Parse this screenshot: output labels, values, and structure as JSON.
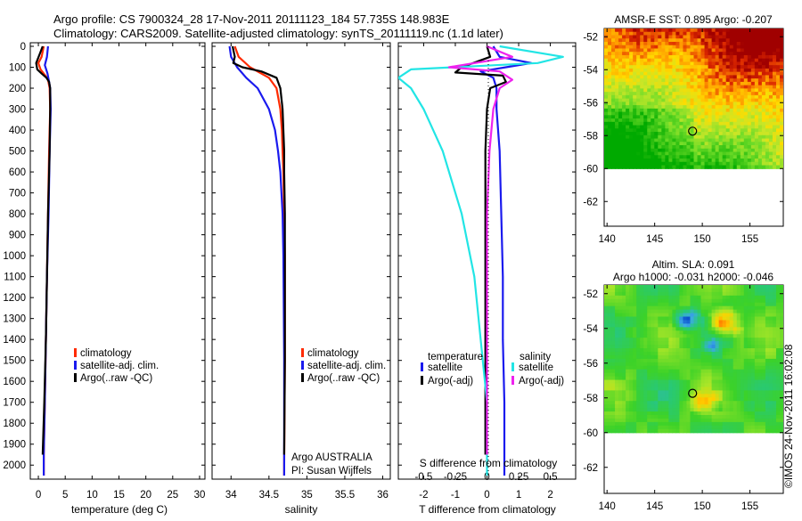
{
  "header": {
    "line1": "Argo profile: CS 7900324_28 17-Nov-2011 20111123_184 57.735S 148.983E",
    "line2": "Climatology: CARS2009. Satellite-adjusted climatology: synTS_20111119.nc (1.1d later)"
  },
  "colors": {
    "climatology": "#ff2a00",
    "satellite": "#1a1aee",
    "argo": "#000000",
    "sal_satellite": "#22e5e5",
    "sal_argo": "#ee22ee"
  },
  "credit": "©IMOS 24-Nov-2011 16:02:08",
  "chart_data": [
    {
      "type": "line",
      "xlabel": "temperature (deg C)",
      "ylim": [
        2050,
        0
      ],
      "xlim": [
        -1.5,
        31
      ],
      "x_ticks": [
        "0",
        "5",
        "10",
        "15",
        "20",
        "25",
        "30"
      ],
      "y_ticks": [
        "0",
        "100",
        "200",
        "300",
        "400",
        "500",
        "600",
        "700",
        "800",
        "900",
        "1000",
        "1100",
        "1200",
        "1300",
        "1400",
        "1500",
        "1600",
        "1700",
        "1800",
        "1900",
        "2000"
      ],
      "legend": [
        "climatology",
        "satellite-adj. clim.",
        "Argo(..raw -QC)"
      ],
      "legend_position": "lower-right",
      "series": [
        {
          "name": "climatology",
          "depth": [
            0,
            50,
            80,
            110,
            140,
            160,
            200,
            300,
            500,
            800,
            1100,
            1400,
            1700,
            1950,
            2050
          ],
          "values": [
            1.0,
            0.6,
            0.0,
            0.4,
            1.3,
            1.8,
            2.1,
            2.2,
            2.0,
            1.8,
            1.6,
            1.4,
            1.2,
            1.0,
            1.0
          ]
        },
        {
          "name": "satellite-adj. clim.",
          "depth": [
            0,
            50,
            90,
            130,
            170,
            200,
            300,
            500,
            800,
            1100,
            1400,
            1700,
            1950,
            2050
          ],
          "values": [
            1.8,
            1.6,
            1.2,
            1.7,
            2.0,
            2.2,
            2.3,
            2.1,
            1.9,
            1.6,
            1.4,
            1.2,
            1.0,
            1.0
          ]
        },
        {
          "name": "Argo(..raw -QC)",
          "depth": [
            0,
            40,
            80,
            110,
            130,
            150,
            170,
            200,
            300,
            500,
            800,
            1100,
            1400,
            1700,
            1950
          ],
          "values": [
            0.8,
            0.2,
            -0.4,
            -0.2,
            0.6,
            1.5,
            2.0,
            2.2,
            2.2,
            2.1,
            1.8,
            1.6,
            1.4,
            1.1,
            0.8
          ]
        }
      ]
    },
    {
      "type": "line",
      "xlabel": "salinity",
      "ylim": [
        2050,
        0
      ],
      "xlim": [
        33.75,
        36.1
      ],
      "x_ticks": [
        "34",
        "34.5",
        "35",
        "35.5",
        "36"
      ],
      "legend": [
        "climatology",
        "satellite-adj. clim.",
        "Argo(..raw -QC)"
      ],
      "legend_position": "lower-right",
      "annotation": [
        "Argo AUSTRALIA",
        "PI: Susan Wijffels"
      ],
      "series": [
        {
          "name": "climatology",
          "depth": [
            0,
            50,
            100,
            150,
            200,
            300,
            400,
            500,
            600,
            800,
            1000,
            1500,
            2000,
            2050
          ],
          "values": [
            34.05,
            34.1,
            34.25,
            34.5,
            34.6,
            34.65,
            34.67,
            34.68,
            34.69,
            34.7,
            34.71,
            34.71,
            34.7,
            34.7
          ]
        },
        {
          "name": "satellite-adj. clim.",
          "depth": [
            0,
            50,
            100,
            150,
            200,
            300,
            400,
            500,
            600,
            800,
            1000,
            1500,
            2000,
            2050
          ],
          "values": [
            33.98,
            34.0,
            34.08,
            34.2,
            34.35,
            34.5,
            34.58,
            34.62,
            34.65,
            34.68,
            34.69,
            34.7,
            34.7,
            34.7
          ]
        },
        {
          "name": "Argo(..raw -QC)",
          "depth": [
            0,
            50,
            80,
            100,
            120,
            150,
            200,
            300,
            400,
            500,
            600,
            800,
            1000,
            1500,
            1950
          ],
          "values": [
            34.02,
            34.05,
            34.03,
            34.15,
            34.4,
            34.6,
            34.65,
            34.68,
            34.69,
            34.7,
            34.7,
            34.71,
            34.71,
            34.71,
            34.7
          ]
        }
      ]
    },
    {
      "type": "line",
      "xlabel": "T difference from climatology",
      "x2label": "S difference from climatology",
      "ylim": [
        2050,
        0
      ],
      "xlim": [
        -2.8,
        2.8
      ],
      "x_ticks": [
        "-2",
        "-1",
        "0",
        "1",
        "2"
      ],
      "x2_ticks": [
        "-0.5",
        "-0.25",
        "0",
        "0.25",
        "0.5"
      ],
      "legend_groups": [
        {
          "title": "temperature",
          "items": [
            "satellite",
            "Argo(-adj)"
          ]
        },
        {
          "title": "salinity",
          "items": [
            "satellite",
            "Argo(-adj)"
          ]
        }
      ],
      "series": [
        {
          "name": "T satellite",
          "depth": [
            0,
            50,
            80,
            100,
            120,
            150,
            200,
            300,
            500,
            800,
            1100,
            1400,
            1700,
            2000,
            2050
          ],
          "values": [
            0.2,
            0.4,
            1.4,
            0.6,
            -0.2,
            0.2,
            0.3,
            0.3,
            0.4,
            0.45,
            0.5,
            0.5,
            0.55,
            0.55,
            0.55
          ]
        },
        {
          "name": "T Argo(-adj)",
          "depth": [
            0,
            50,
            100,
            125,
            140,
            170,
            200,
            300,
            500,
            800,
            1100,
            1400,
            1700,
            1950
          ],
          "values": [
            0.0,
            0.1,
            -0.8,
            -1.0,
            0.5,
            0.6,
            0.1,
            0.0,
            -0.05,
            -0.05,
            -0.05,
            -0.05,
            -0.05,
            -0.05
          ]
        },
        {
          "name": "S satellite",
          "depth": [
            0,
            50,
            80,
            110,
            150,
            200,
            300,
            500,
            800,
            1100,
            1400,
            1700,
            2000,
            2050
          ],
          "values": [
            0.1,
            0.6,
            0.4,
            -0.6,
            -0.7,
            -0.6,
            -0.5,
            -0.35,
            -0.2,
            -0.1,
            -0.05,
            0.0,
            0.0,
            0.0
          ]
        },
        {
          "name": "S Argo(-adj)",
          "depth": [
            0,
            50,
            100,
            120,
            160,
            200,
            300,
            500,
            800,
            1100,
            1400,
            1700,
            1950
          ],
          "values": [
            0.0,
            0.2,
            -0.3,
            0.1,
            0.2,
            0.1,
            0.05,
            0.02,
            0.0,
            0.0,
            0.0,
            0.0,
            0.0
          ]
        }
      ]
    },
    {
      "type": "heatmap",
      "title": "AMSR-E SST: 0.895  Argo: -0.207",
      "x_ticks": [
        "140",
        "145",
        "150",
        "155"
      ],
      "y_ticks": [
        "-52",
        "-54",
        "-56",
        "-58",
        "-60",
        "-62"
      ],
      "xlim": [
        139.7,
        158.5
      ],
      "ylim": [
        -63.5,
        -51.5
      ],
      "data_extent_lat": [
        -60,
        -51.5
      ],
      "marker": {
        "lon": 148.983,
        "lat": -57.735
      }
    },
    {
      "type": "heatmap",
      "title": "Altim. SLA: 0.091",
      "subtitle": "Argo h1000: -0.031  h2000: -0.046",
      "x_ticks": [
        "140",
        "145",
        "150",
        "155"
      ],
      "y_ticks": [
        "-52",
        "-54",
        "-56",
        "-58",
        "-60",
        "-62"
      ],
      "xlim": [
        139.7,
        158.5
      ],
      "ylim": [
        -63.5,
        -51.5
      ],
      "data_extent_lat": [
        -60,
        -51.5
      ],
      "marker": {
        "lon": 148.983,
        "lat": -57.735
      }
    }
  ]
}
